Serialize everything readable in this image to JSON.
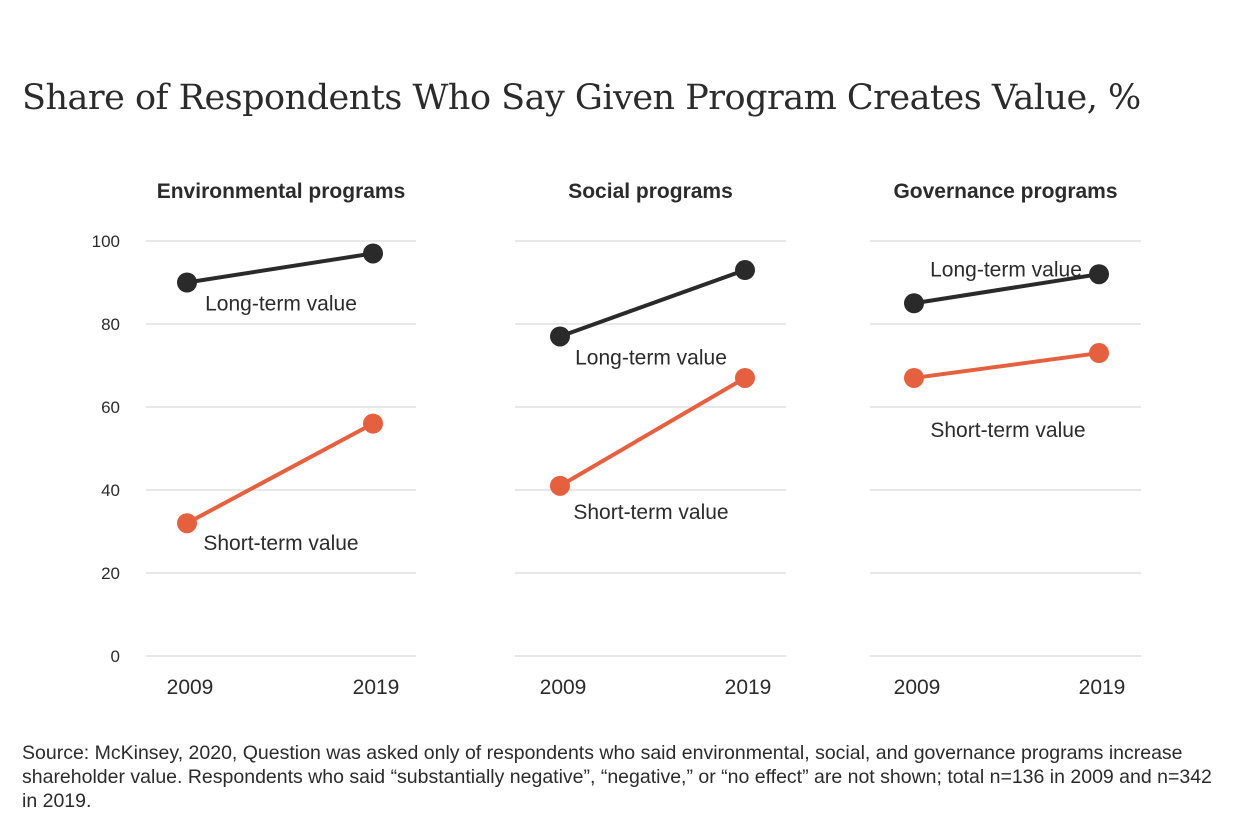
{
  "title": "Share of Respondents Who Say Given Program Creates Value, %",
  "source": "Source: McKinsey, 2020, Question was asked only of respondents who said environmental, social, and governance programs increase shareholder value. Respondents who said “substantially negative”, “negative,” or “no effect” are not shown; total n=136 in 2009 and n=342 in 2019.",
  "colors": {
    "long_term": "#2a2a2a",
    "short_term": "#e5603f",
    "grid": "#d9d9d9",
    "text": "#2b2b2b"
  },
  "chart_data": [
    {
      "type": "line",
      "title": "Environmental programs",
      "categories": [
        "2009",
        "2019"
      ],
      "ylim": [
        0,
        100
      ],
      "yticks": [
        0,
        20,
        40,
        60,
        80,
        100
      ],
      "ytick_labels_shown": true,
      "grid": true,
      "series": [
        {
          "name": "Long-term value",
          "values": [
            90,
            97
          ]
        },
        {
          "name": "Short-term value",
          "values": [
            32,
            56
          ]
        }
      ]
    },
    {
      "type": "line",
      "title": "Social programs",
      "categories": [
        "2009",
        "2019"
      ],
      "ylim": [
        0,
        100
      ],
      "yticks": [
        0,
        20,
        40,
        60,
        80,
        100
      ],
      "ytick_labels_shown": false,
      "grid": true,
      "series": [
        {
          "name": "Long-term value",
          "values": [
            77,
            93
          ]
        },
        {
          "name": "Short-term value",
          "values": [
            41,
            67
          ]
        }
      ]
    },
    {
      "type": "line",
      "title": "Governance programs",
      "categories": [
        "2009",
        "2019"
      ],
      "ylim": [
        0,
        100
      ],
      "yticks": [
        0,
        20,
        40,
        60,
        80,
        100
      ],
      "ytick_labels_shown": false,
      "grid": true,
      "series": [
        {
          "name": "Long-term value",
          "values": [
            85,
            92
          ]
        },
        {
          "name": "Short-term value",
          "values": [
            67,
            73
          ]
        }
      ]
    }
  ]
}
